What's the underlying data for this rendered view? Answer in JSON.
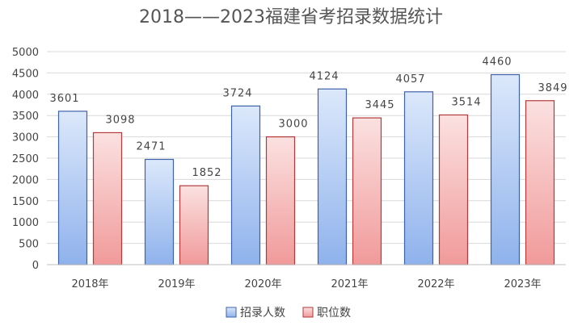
{
  "chart_data": {
    "type": "bar",
    "title": "2018——2023福建省考招录数据统计",
    "xlabel": "",
    "ylabel": "",
    "categories": [
      "2018年",
      "2019年",
      "2020年",
      "2021年",
      "2022年",
      "2023年"
    ],
    "series": [
      {
        "name": "招录人数",
        "values": [
          3601,
          2471,
          3724,
          4124,
          4057,
          4460
        ],
        "color_top": "#dce8fb",
        "color_bottom": "#8fb2ec",
        "stroke": "#3f63a8"
      },
      {
        "name": "职位数",
        "values": [
          3098,
          1852,
          3000,
          3445,
          3514,
          3849
        ],
        "color_top": "#fbe1e1",
        "color_bottom": "#f19a9a",
        "stroke": "#b23a3a"
      }
    ],
    "ylim": [
      0,
      5000
    ],
    "yticks": [
      0,
      500,
      1000,
      1500,
      2000,
      2500,
      3000,
      3500,
      4000,
      4500,
      5000
    ],
    "grid": true,
    "legend": "bottom",
    "data_labels": true
  }
}
